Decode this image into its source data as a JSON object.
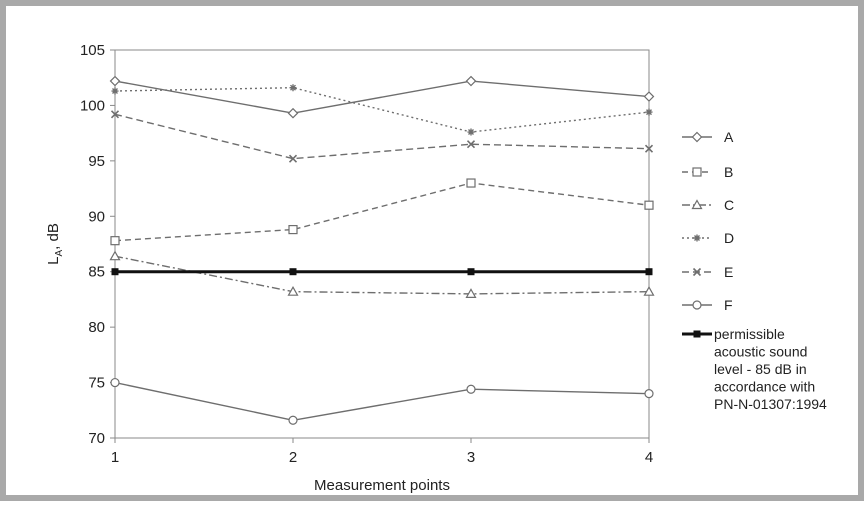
{
  "chart_data": {
    "type": "line",
    "title": "",
    "xlabel": "Measurement points",
    "ylabel_main": "L",
    "ylabel_sub": "A",
    "ylabel_rest": ", dB",
    "x": [
      1,
      2,
      3,
      4
    ],
    "xticks": [
      "1",
      "2",
      "3",
      "4"
    ],
    "xlim": [
      1,
      4
    ],
    "ylim": [
      70,
      105
    ],
    "yticks": [
      "70",
      "75",
      "80",
      "85",
      "90",
      "95",
      "100",
      "105"
    ],
    "grid": false,
    "legend_position": "right",
    "series": [
      {
        "name": "A",
        "values": [
          102.2,
          99.3,
          102.2,
          100.8
        ],
        "color": "#6e6e6e",
        "dash": "",
        "marker": "diamond"
      },
      {
        "name": "B",
        "values": [
          87.8,
          88.8,
          93.0,
          91.0
        ],
        "color": "#6e6e6e",
        "dash": "6,4",
        "marker": "square"
      },
      {
        "name": "C",
        "values": [
          86.4,
          83.2,
          83.0,
          83.2
        ],
        "color": "#6e6e6e",
        "dash": "8,3,2,3",
        "marker": "triangle"
      },
      {
        "name": "D",
        "values": [
          101.3,
          101.6,
          97.6,
          99.4
        ],
        "color": "#6e6e6e",
        "dash": "2,3",
        "marker": "star"
      },
      {
        "name": "E",
        "values": [
          99.2,
          95.2,
          96.5,
          96.1
        ],
        "color": "#6e6e6e",
        "dash": "7,4",
        "marker": "x"
      },
      {
        "name": "F",
        "values": [
          75.0,
          71.6,
          74.4,
          74.0
        ],
        "color": "#6e6e6e",
        "dash": "",
        "marker": "circle"
      },
      {
        "name": "permissible acoustic sound level - 85 dB in accordance with PN-N-01307:1994",
        "values": [
          85,
          85,
          85,
          85
        ],
        "color": "#111111",
        "dash": "",
        "marker": "filled-square",
        "width": 3
      }
    ],
    "limit_legend_lines": [
      "permissible",
      "acoustic sound",
      "level - 85 dB in",
      "accordance with",
      "PN-N-01307:1994"
    ]
  }
}
